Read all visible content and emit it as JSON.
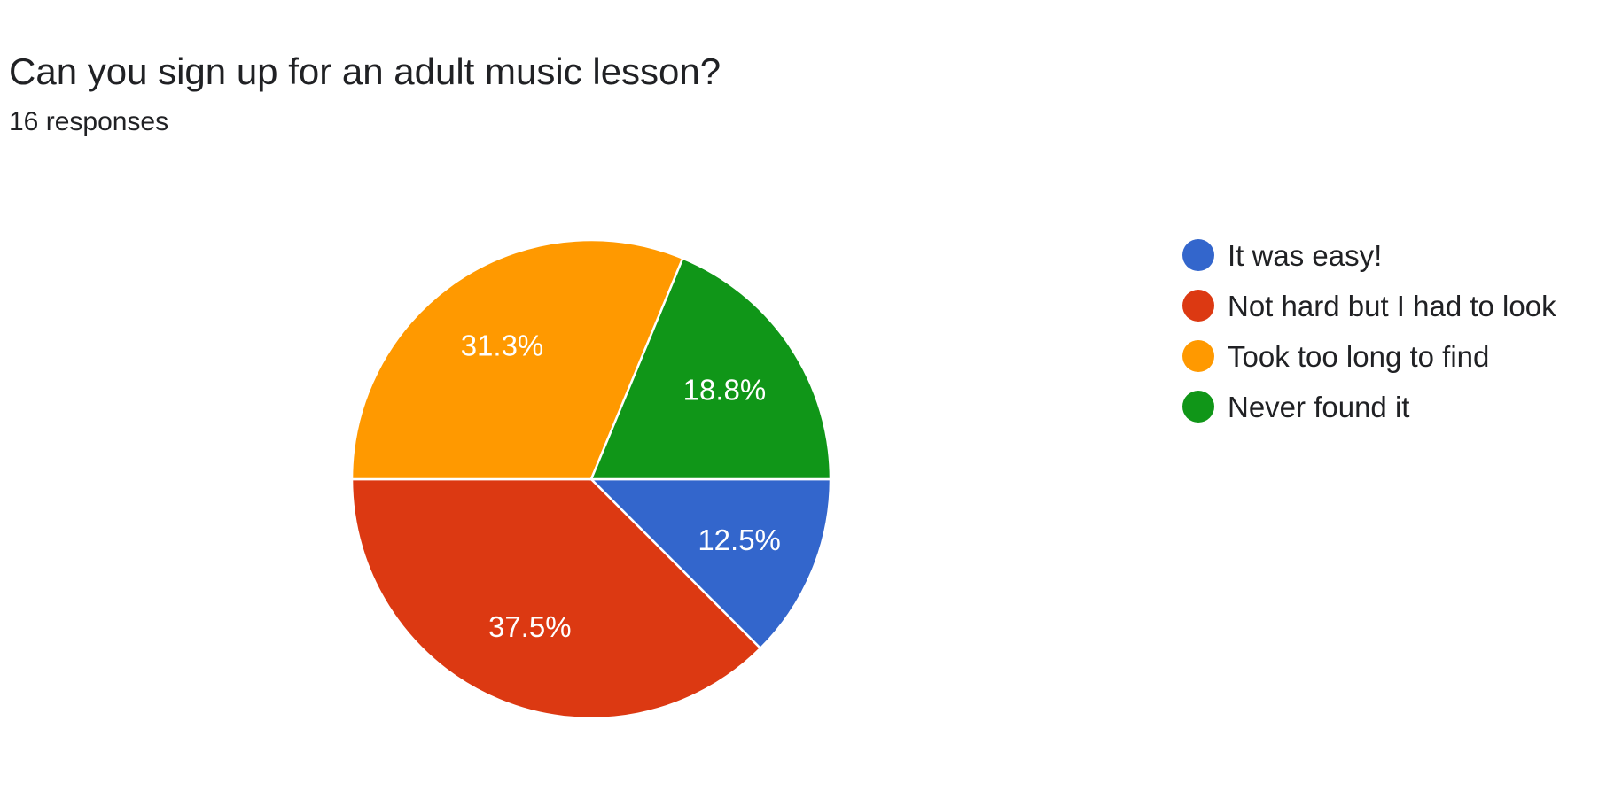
{
  "header": {
    "title": "Can you sign up for an adult music lesson?",
    "responses": "16 responses"
  },
  "chart_data": {
    "type": "pie",
    "title": "Can you sign up for an adult music lesson?",
    "total_responses": 16,
    "legend_position": "right",
    "slices": [
      {
        "label": "It was easy!",
        "value": 2,
        "percent": "12.5%",
        "color": "#3366cc"
      },
      {
        "label": "Not hard but I had to look",
        "value": 6,
        "percent": "37.5%",
        "color": "#dc3912"
      },
      {
        "label": "Took too long to find",
        "value": 5,
        "percent": "31.3%",
        "color": "#ff9900"
      },
      {
        "label": "Never found it",
        "value": 3,
        "percent": "18.8%",
        "color": "#109618"
      }
    ]
  }
}
